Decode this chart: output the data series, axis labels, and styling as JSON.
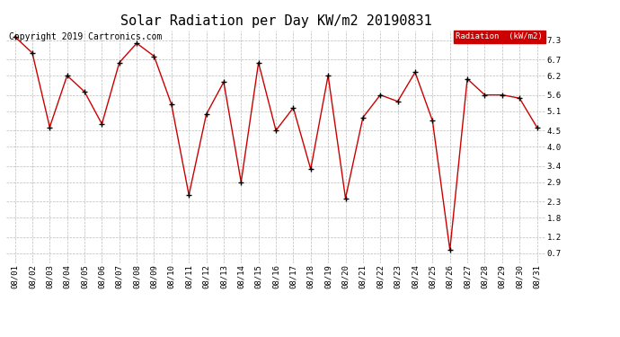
{
  "title": "Solar Radiation per Day KW/m2 20190831",
  "copyright": "Copyright 2019 Cartronics.com",
  "legend_label": "Radiation  (kW/m2)",
  "dates": [
    "08/01",
    "08/02",
    "08/03",
    "08/04",
    "08/05",
    "08/06",
    "08/07",
    "08/08",
    "08/09",
    "08/10",
    "08/11",
    "08/12",
    "08/13",
    "08/14",
    "08/15",
    "08/16",
    "08/17",
    "08/18",
    "08/19",
    "08/20",
    "08/21",
    "08/22",
    "08/23",
    "08/24",
    "08/25",
    "08/26",
    "08/27",
    "08/28",
    "08/29",
    "08/30",
    "08/31"
  ],
  "values": [
    7.4,
    6.9,
    4.6,
    6.2,
    5.7,
    4.7,
    6.6,
    7.2,
    6.8,
    5.3,
    2.5,
    5.0,
    6.0,
    2.9,
    6.6,
    4.5,
    5.2,
    3.3,
    6.2,
    2.4,
    4.9,
    5.6,
    5.4,
    6.3,
    4.8,
    0.8,
    6.1,
    5.6,
    5.6,
    5.5,
    4.6
  ],
  "line_color": "#cc0000",
  "marker_color": "#000000",
  "bg_color": "#ffffff",
  "grid_color": "#bbbbbb",
  "ylim": [
    0.4,
    7.6
  ],
  "yticks": [
    0.7,
    1.2,
    1.8,
    2.3,
    2.9,
    3.4,
    4.0,
    4.5,
    5.1,
    5.6,
    6.2,
    6.7,
    7.3
  ],
  "legend_bg": "#cc0000",
  "legend_text_color": "#ffffff",
  "title_fontsize": 11,
  "copyright_fontsize": 7,
  "tick_fontsize": 6.5
}
